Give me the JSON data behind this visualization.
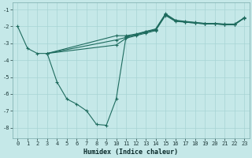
{
  "xlabel": "Humidex (Indice chaleur)",
  "background_color": "#c5e8e8",
  "line_color": "#1e6b5e",
  "grid_color": "#a8d4d4",
  "xlim": [
    -0.5,
    23.5
  ],
  "ylim": [
    -8.6,
    -0.6
  ],
  "yticks": [
    -8,
    -7,
    -6,
    -5,
    -4,
    -3,
    -2,
    -1
  ],
  "xticks": [
    0,
    1,
    2,
    3,
    4,
    5,
    6,
    7,
    8,
    9,
    10,
    11,
    12,
    13,
    14,
    15,
    16,
    17,
    18,
    19,
    20,
    21,
    22,
    23
  ],
  "series1": [
    [
      0,
      -2.0
    ],
    [
      1,
      -3.3
    ],
    [
      2,
      -3.6
    ],
    [
      3,
      -3.6
    ],
    [
      4,
      -5.3
    ],
    [
      5,
      -6.3
    ],
    [
      6,
      -6.6
    ],
    [
      7,
      -7.0
    ],
    [
      8,
      -7.8
    ],
    [
      9,
      -7.85
    ],
    [
      10,
      -6.3
    ],
    [
      11,
      -2.6
    ],
    [
      12,
      -2.5
    ],
    [
      13,
      -2.3
    ],
    [
      14,
      -2.2
    ],
    [
      15,
      -1.3
    ],
    [
      16,
      -1.65
    ],
    [
      17,
      -1.75
    ],
    [
      18,
      -1.8
    ],
    [
      19,
      -1.85
    ],
    [
      20,
      -1.85
    ],
    [
      21,
      -1.9
    ],
    [
      22,
      -1.9
    ],
    [
      23,
      -1.5
    ]
  ],
  "series2": [
    [
      3,
      -3.6
    ],
    [
      10,
      -3.1
    ],
    [
      11,
      -2.7
    ],
    [
      12,
      -2.55
    ],
    [
      13,
      -2.4
    ],
    [
      14,
      -2.25
    ],
    [
      15,
      -1.35
    ],
    [
      16,
      -1.7
    ],
    [
      17,
      -1.75
    ],
    [
      18,
      -1.8
    ],
    [
      19,
      -1.85
    ],
    [
      20,
      -1.85
    ],
    [
      21,
      -1.9
    ],
    [
      22,
      -1.9
    ],
    [
      23,
      -1.5
    ]
  ],
  "series3": [
    [
      3,
      -3.6
    ],
    [
      10,
      -2.8
    ],
    [
      11,
      -2.65
    ],
    [
      12,
      -2.5
    ],
    [
      13,
      -2.35
    ],
    [
      14,
      -2.2
    ],
    [
      15,
      -1.3
    ],
    [
      16,
      -1.67
    ],
    [
      17,
      -1.73
    ],
    [
      18,
      -1.78
    ],
    [
      19,
      -1.83
    ],
    [
      20,
      -1.83
    ],
    [
      21,
      -1.88
    ],
    [
      22,
      -1.88
    ],
    [
      23,
      -1.5
    ]
  ],
  "series4": [
    [
      3,
      -3.6
    ],
    [
      10,
      -2.55
    ],
    [
      11,
      -2.55
    ],
    [
      12,
      -2.45
    ],
    [
      13,
      -2.3
    ],
    [
      14,
      -2.15
    ],
    [
      15,
      -1.25
    ],
    [
      16,
      -1.63
    ],
    [
      17,
      -1.7
    ],
    [
      18,
      -1.76
    ],
    [
      19,
      -1.82
    ],
    [
      20,
      -1.82
    ],
    [
      21,
      -1.86
    ],
    [
      22,
      -1.86
    ],
    [
      23,
      -1.48
    ]
  ]
}
